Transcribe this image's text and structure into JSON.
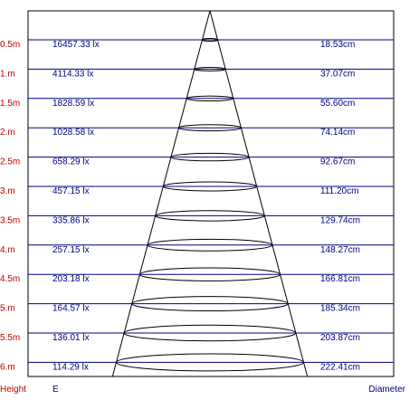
{
  "rows": [
    {
      "height": "0.5m",
      "illuminance": "16457.33 lx",
      "diameter": "18.53cm"
    },
    {
      "height": "1.m",
      "illuminance": "4114.33 lx",
      "diameter": "37.07cm"
    },
    {
      "height": "1.5m",
      "illuminance": "1828.59 lx",
      "diameter": "55.60cm"
    },
    {
      "height": "2.m",
      "illuminance": "1028.58 lx",
      "diameter": "74.14cm"
    },
    {
      "height": "2.5m",
      "illuminance": "658.29 lx",
      "diameter": "92.67cm"
    },
    {
      "height": "3.m",
      "illuminance": "457.15 lx",
      "diameter": "111.20cm"
    },
    {
      "height": "3.5m",
      "illuminance": "335.86 lx",
      "diameter": "129.74cm"
    },
    {
      "height": "4.m",
      "illuminance": "257.15 lx",
      "diameter": "148.27cm"
    },
    {
      "height": "4.5m",
      "illuminance": "203.18 lx",
      "diameter": "166.81cm"
    },
    {
      "height": "5.m",
      "illuminance": "164.57 lx",
      "diameter": "185.34cm"
    },
    {
      "height": "5.5m",
      "illuminance": "136.01 lx",
      "diameter": "203.87cm"
    },
    {
      "height": "6.m",
      "illuminance": "114.29 lx",
      "diameter": "222.41cm"
    }
  ],
  "footer": {
    "height_label": "Height",
    "illuminance_label": "E",
    "diameter_label": "Diameter"
  },
  "colors": {
    "height_text": "#c00000",
    "value_text": "#000080",
    "row_line": "#000080",
    "frame": "#000000",
    "cone": "#000000"
  }
}
